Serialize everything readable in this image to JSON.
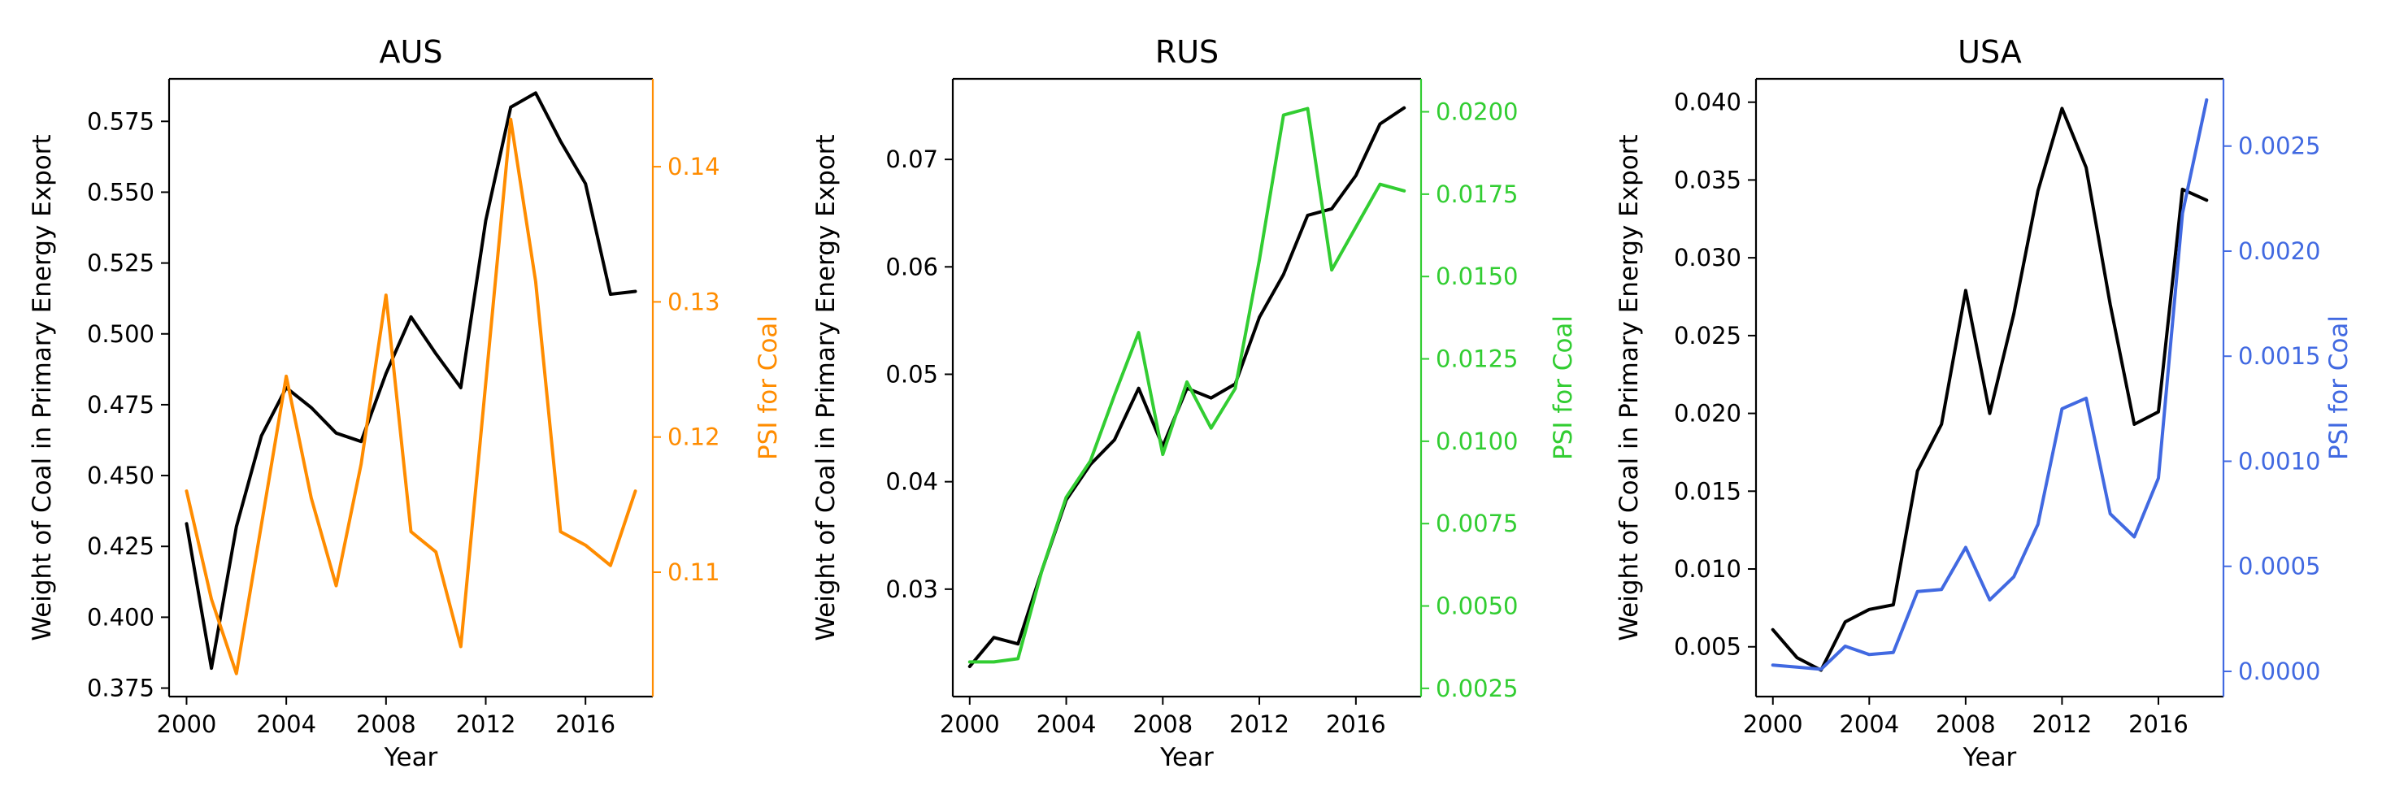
{
  "chart_data": [
    {
      "type": "line",
      "title": "AUS",
      "xlabel": "Year",
      "ylabel": "Weight of Coal in Primary Energy Export",
      "y2label": "PSI for Coal",
      "xlim": [
        1999.3,
        2018.7
      ],
      "ylim": [
        0.372,
        0.59
      ],
      "y2lim": [
        0.1008,
        0.1465
      ],
      "xticks": [
        2000,
        2004,
        2008,
        2012,
        2016
      ],
      "yticks": [
        0.375,
        0.4,
        0.425,
        0.45,
        0.475,
        0.5,
        0.525,
        0.55,
        0.575
      ],
      "ytick_labels": [
        "0.375",
        "0.400",
        "0.425",
        "0.450",
        "0.475",
        "0.500",
        "0.525",
        "0.550",
        "0.575"
      ],
      "y2ticks": [
        0.11,
        0.12,
        0.13,
        0.14
      ],
      "y2tick_labels": [
        "0.11",
        "0.12",
        "0.13",
        "0.14"
      ],
      "y2_color": "#FF8C00",
      "grid": false,
      "x": [
        2000,
        2001,
        2002,
        2003,
        2004,
        2005,
        2006,
        2007,
        2008,
        2009,
        2010,
        2011,
        2012,
        2013,
        2014,
        2015,
        2016,
        2017,
        2018
      ],
      "series": [
        {
          "axis": "left",
          "color": "#000000",
          "values": [
            0.433,
            0.382,
            0.432,
            0.464,
            0.481,
            0.474,
            0.465,
            0.462,
            0.486,
            0.506,
            0.493,
            0.481,
            0.54,
            0.58,
            0.585,
            0.568,
            0.553,
            0.514,
            0.515
          ]
        },
        {
          "axis": "right",
          "color": "#FF8C00",
          "values": [
            0.116,
            0.108,
            0.1025,
            0.1135,
            0.1245,
            0.1155,
            0.109,
            0.118,
            0.1305,
            0.113,
            0.1115,
            0.1045,
            0.124,
            0.1435,
            0.1315,
            0.113,
            0.112,
            0.1105,
            0.116
          ]
        }
      ]
    },
    {
      "type": "line",
      "title": "RUS",
      "xlabel": "Year",
      "ylabel": "Weight of Coal in Primary Energy Export",
      "y2label": "PSI for Coal",
      "xlim": [
        1999.3,
        2018.7
      ],
      "ylim": [
        0.02,
        0.0775
      ],
      "y2lim": [
        0.00225,
        0.021
      ],
      "xticks": [
        2000,
        2004,
        2008,
        2012,
        2016
      ],
      "yticks": [
        0.03,
        0.04,
        0.05,
        0.06,
        0.07
      ],
      "ytick_labels": [
        "0.03",
        "0.04",
        "0.05",
        "0.06",
        "0.07"
      ],
      "y2ticks": [
        0.0025,
        0.005,
        0.0075,
        0.01,
        0.0125,
        0.015,
        0.0175,
        0.02
      ],
      "y2tick_labels": [
        "0.0025",
        "0.0050",
        "0.0075",
        "0.0100",
        "0.0125",
        "0.0150",
        "0.0175",
        "0.0200"
      ],
      "y2_color": "#32CD32",
      "grid": false,
      "x": [
        2000,
        2001,
        2002,
        2003,
        2004,
        2005,
        2006,
        2007,
        2008,
        2009,
        2010,
        2011,
        2012,
        2013,
        2014,
        2015,
        2016,
        2017,
        2018
      ],
      "series": [
        {
          "axis": "left",
          "color": "#000000",
          "values": [
            0.0228,
            0.0255,
            0.0249,
            0.0318,
            0.0383,
            0.0416,
            0.0439,
            0.0487,
            0.0433,
            0.0487,
            0.0478,
            0.0491,
            0.0553,
            0.0593,
            0.0648,
            0.0654,
            0.0685,
            0.0733,
            0.0748
          ]
        },
        {
          "axis": "right",
          "color": "#32CD32",
          "values": [
            0.0033,
            0.0033,
            0.0034,
            0.0061,
            0.0083,
            0.0094,
            0.0114,
            0.0133,
            0.0096,
            0.0118,
            0.0104,
            0.0116,
            0.0155,
            0.0199,
            0.0201,
            0.0152,
            0.0165,
            0.0178,
            0.0176
          ]
        }
      ]
    },
    {
      "type": "line",
      "title": "USA",
      "xlabel": "Year",
      "ylabel": "Weight of Coal in Primary Energy Export",
      "y2label": "PSI for Coal",
      "xlim": [
        1999.3,
        2018.7
      ],
      "ylim": [
        0.0018,
        0.0415
      ],
      "y2lim": [
        -0.00012,
        0.00282
      ],
      "xticks": [
        2000,
        2004,
        2008,
        2012,
        2016
      ],
      "yticks": [
        0.005,
        0.01,
        0.015,
        0.02,
        0.025,
        0.03,
        0.035,
        0.04
      ],
      "ytick_labels": [
        "0.005",
        "0.010",
        "0.015",
        "0.020",
        "0.025",
        "0.030",
        "0.035",
        "0.040"
      ],
      "y2ticks": [
        0,
        0.0005,
        0.001,
        0.0015,
        0.002,
        0.0025
      ],
      "y2tick_labels": [
        "0.0000",
        "0.0005",
        "0.0010",
        "0.0015",
        "0.0020",
        "0.0025"
      ],
      "y2_color": "#4169E1",
      "grid": false,
      "x": [
        2000,
        2001,
        2002,
        2003,
        2004,
        2005,
        2006,
        2007,
        2008,
        2009,
        2010,
        2011,
        2012,
        2013,
        2014,
        2015,
        2016,
        2017,
        2018
      ],
      "series": [
        {
          "axis": "left",
          "color": "#000000",
          "values": [
            0.0061,
            0.0043,
            0.0035,
            0.0066,
            0.0074,
            0.0077,
            0.0163,
            0.0193,
            0.0279,
            0.02,
            0.0264,
            0.0343,
            0.0396,
            0.0358,
            0.027,
            0.0193,
            0.0201,
            0.0344,
            0.0337
          ]
        },
        {
          "axis": "right",
          "color": "#4169E1",
          "values": [
            3e-05,
            2e-05,
            1e-05,
            0.00012,
            8e-05,
            9e-05,
            0.00038,
            0.00039,
            0.00059,
            0.00034,
            0.00045,
            0.0007,
            0.00125,
            0.0013,
            0.00075,
            0.00064,
            0.00092,
            0.00218,
            0.00272
          ]
        }
      ]
    }
  ]
}
